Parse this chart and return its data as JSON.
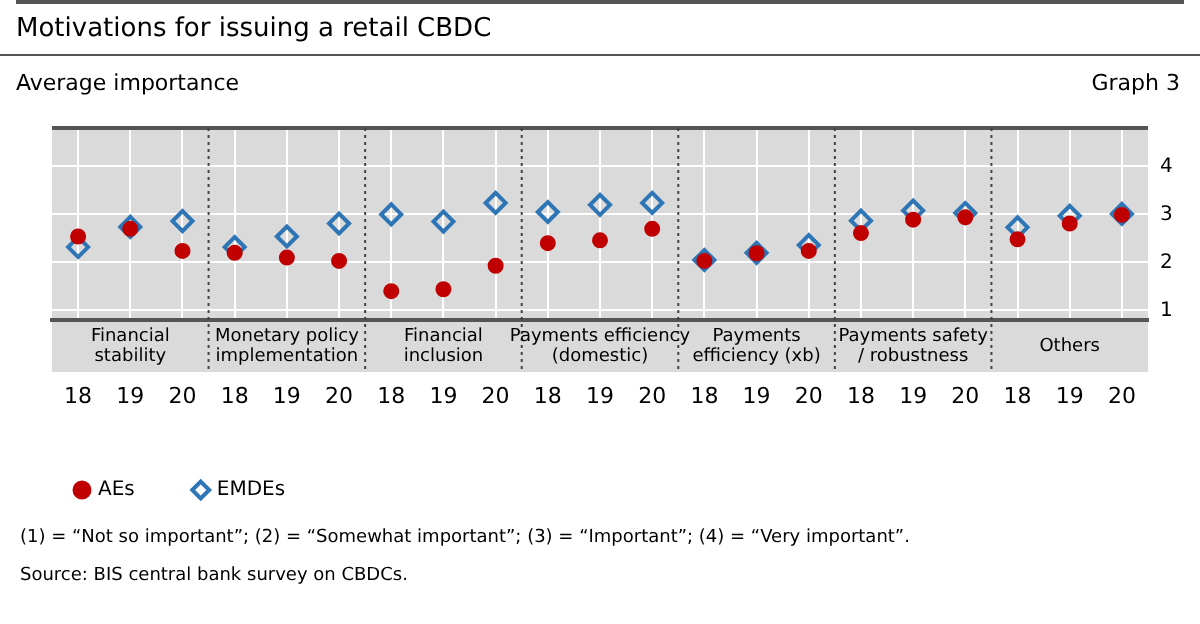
{
  "chart_data": {
    "type": "scatter",
    "title": "Motivations for issuing a retail CBDC",
    "subtitle": "Average importance",
    "categories": [
      "18",
      "19",
      "20",
      "18",
      "19",
      "20",
      "18",
      "19",
      "20",
      "18",
      "19",
      "20",
      "18",
      "19",
      "20",
      "18",
      "19",
      "20",
      "18",
      "19",
      "20"
    ],
    "series": [
      {
        "name": "AEs",
        "color": "#c00000",
        "marker": "circle",
        "values": [
          2.54,
          2.7,
          2.24,
          2.2,
          2.1,
          2.03,
          1.4,
          1.44,
          1.93,
          2.4,
          2.46,
          2.7,
          2.03,
          2.19,
          2.24,
          2.61,
          2.89,
          2.94,
          2.48,
          2.81,
          2.99
        ]
      },
      {
        "name": "EMDEs",
        "color": "#2e75b6",
        "marker": "diamond",
        "values": [
          2.32,
          2.74,
          2.86,
          2.32,
          2.54,
          2.81,
          3.0,
          2.85,
          3.24,
          3.05,
          3.2,
          3.24,
          2.05,
          2.2,
          2.36,
          2.87,
          3.08,
          3.03,
          2.73,
          2.97,
          3.01
        ]
      }
    ],
    "ylim": [
      0.8,
      4.8
    ],
    "yticks": [
      1,
      2,
      3,
      4
    ],
    "grid": true,
    "legend": "bottom left",
    "annotations": [
      "Financial stability",
      "Monetary policy implementation",
      "Financial inclusion",
      "Payments efficiency (domestic)",
      "Payments efficiency (xb)",
      "Payments safety / robustness",
      "Others",
      "Graph 3",
      "(1) = “Not so important”; (2) = “Somewhat important”; (3) = “Important”; (4) = “Very important”.",
      "Source: BIS central bank survey on CBDCs."
    ]
  }
}
